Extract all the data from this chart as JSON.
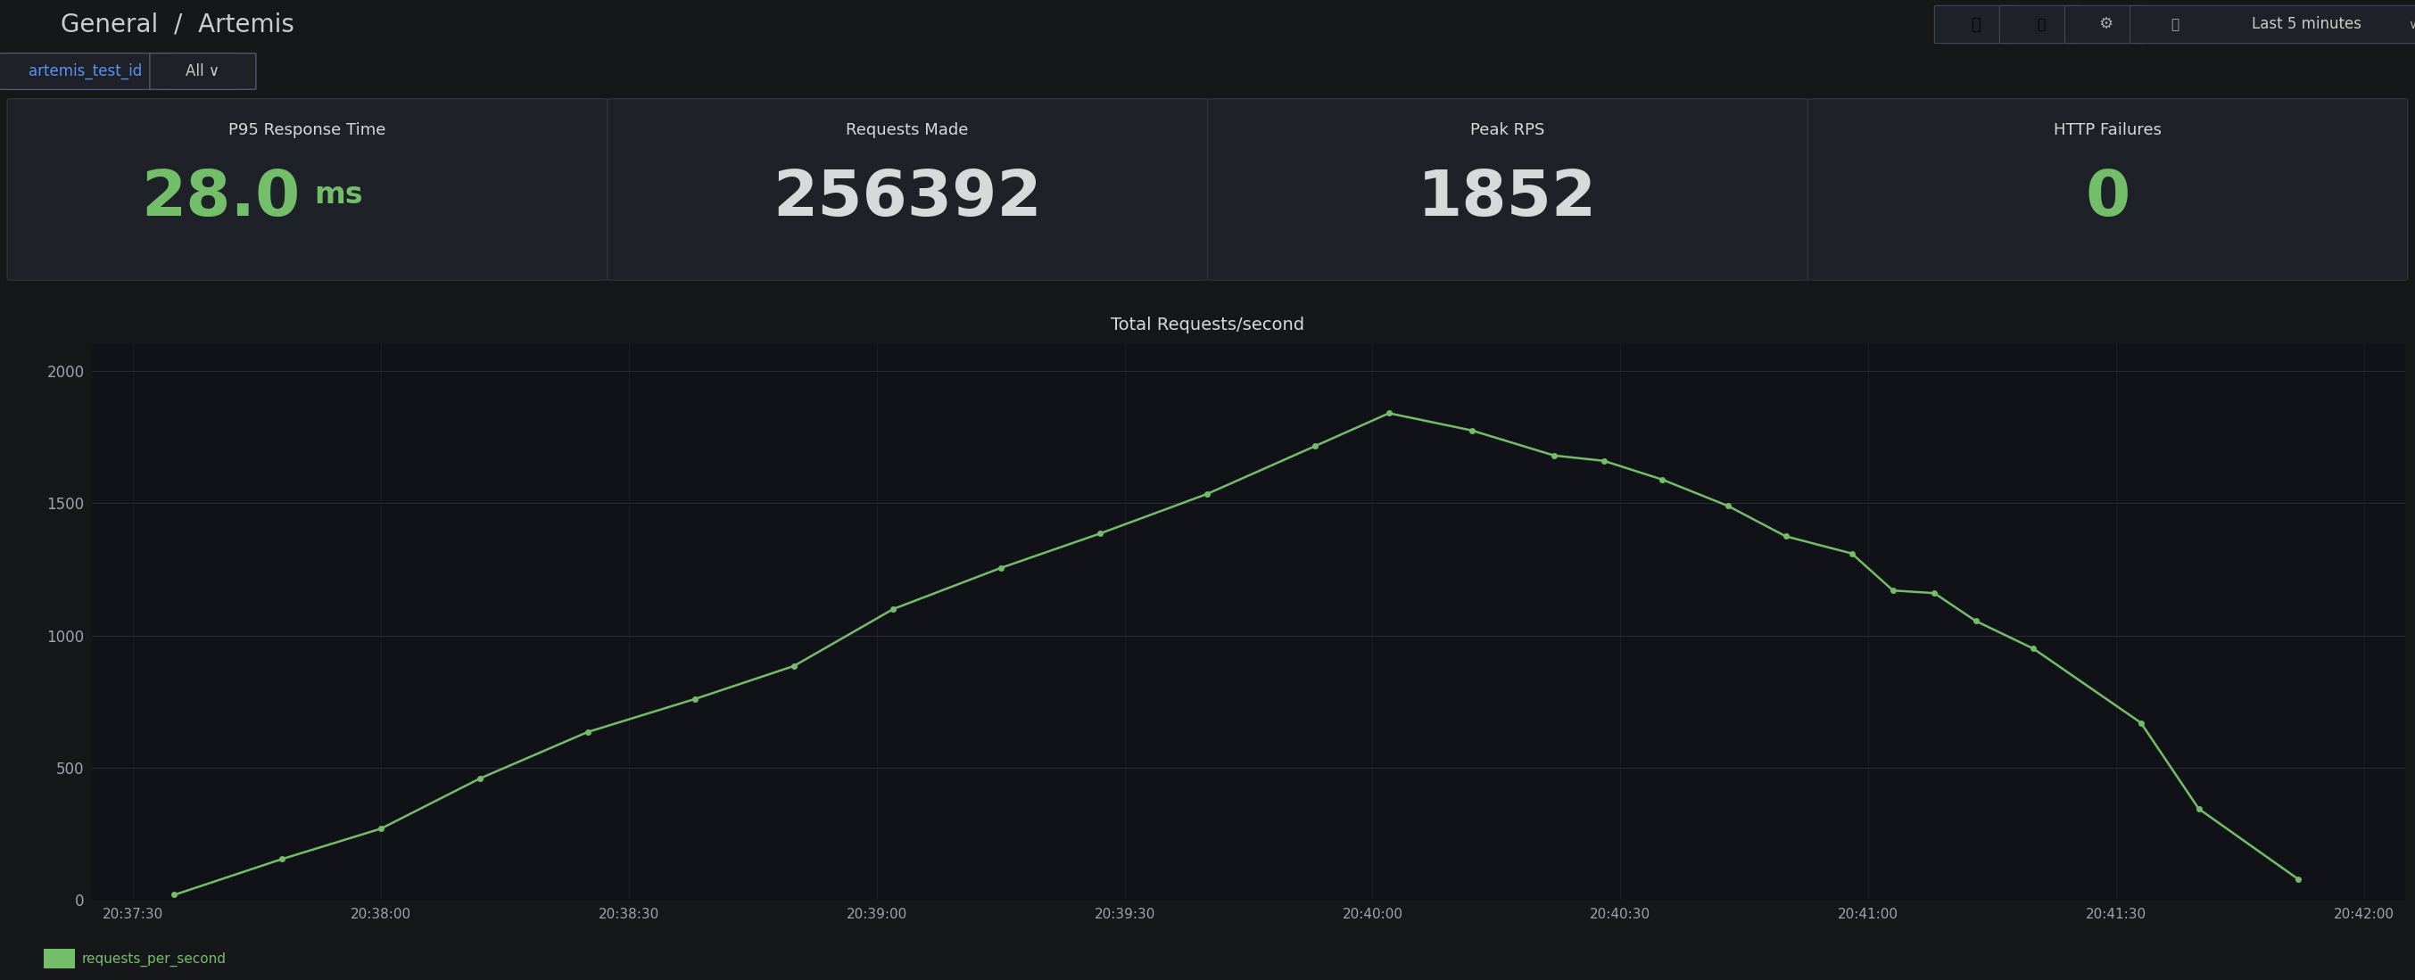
{
  "bg_color": "#161719",
  "panel_bg": "#1f2128",
  "panel_border": "#333540",
  "title_bar_bg": "#111217",
  "header_text": "General  /  Artemis",
  "header_text_color": "#cccccc",
  "filter_label": "artemis_test_id",
  "filter_label_color": "#5794f2",
  "filter_value": "All",
  "summary_panels": [
    {
      "title": "P95 Response Time",
      "value": "28.0",
      "unit": "ms",
      "value_color": "#73bf69",
      "unit_color": "#73bf69",
      "text_color": "#d8d9da"
    },
    {
      "title": "Requests Made",
      "value": "256392",
      "unit": "",
      "value_color": "#d8d9da",
      "unit_color": "#d8d9da",
      "text_color": "#d8d9da"
    },
    {
      "title": "Peak RPS",
      "value": "1852",
      "unit": "",
      "value_color": "#d8d9da",
      "unit_color": "#d8d9da",
      "text_color": "#d8d9da"
    },
    {
      "title": "HTTP Failures",
      "value": "0",
      "unit": "",
      "value_color": "#73bf69",
      "unit_color": "#73bf69",
      "text_color": "#d8d9da"
    }
  ],
  "chart_title": "Total Requests/second",
  "chart_title_color": "#d8d9da",
  "chart_bg": "#111217",
  "chart_line_color": "#73bf69",
  "chart_grid_color": "#2a2d38",
  "chart_text_color": "#9fa3ad",
  "legend_label": "requests_per_second",
  "legend_color": "#73bf69",
  "x_times": [
    "20:37:30",
    "20:38:00",
    "20:38:30",
    "20:39:00",
    "20:39:30",
    "20:40:00",
    "20:40:30",
    "20:41:00",
    "20:41:30",
    "20:42:00"
  ],
  "x_tick_pos": [
    0,
    30,
    60,
    90,
    120,
    150,
    180,
    210,
    240,
    270
  ],
  "y_data": [
    [
      5,
      20
    ],
    [
      18,
      155
    ],
    [
      30,
      270
    ],
    [
      42,
      460
    ],
    [
      55,
      635
    ],
    [
      68,
      760
    ],
    [
      80,
      885
    ],
    [
      92,
      1100
    ],
    [
      105,
      1255
    ],
    [
      117,
      1385
    ],
    [
      130,
      1535
    ],
    [
      143,
      1715
    ],
    [
      152,
      1840
    ],
    [
      162,
      1775
    ],
    [
      172,
      1680
    ],
    [
      178,
      1660
    ],
    [
      185,
      1590
    ],
    [
      193,
      1490
    ],
    [
      200,
      1375
    ],
    [
      208,
      1310
    ],
    [
      213,
      1170
    ],
    [
      218,
      1160
    ],
    [
      223,
      1055
    ],
    [
      230,
      950
    ],
    [
      243,
      670
    ],
    [
      250,
      345
    ],
    [
      262,
      80
    ]
  ],
  "xlim": [
    -5,
    275
  ],
  "y_ticks": [
    0,
    500,
    1000,
    1500,
    2000
  ],
  "ylim": [
    0,
    2100
  ]
}
